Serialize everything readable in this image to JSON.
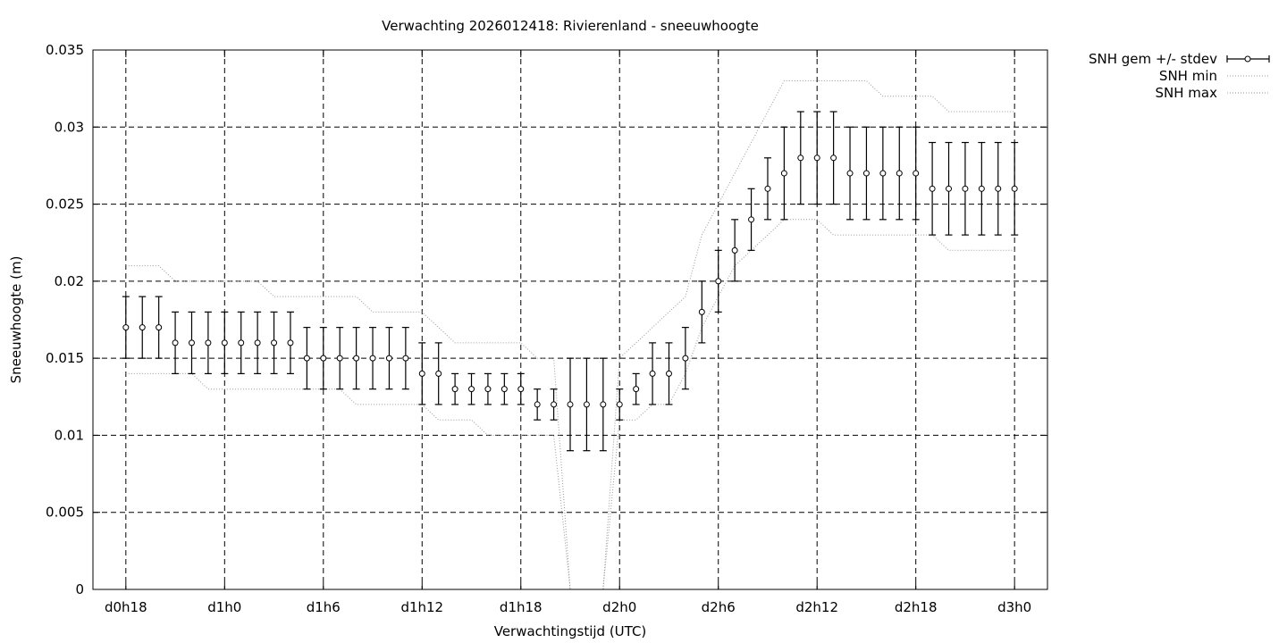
{
  "chart_data": {
    "type": "line",
    "title": "Verwachting 2026012418: Rivierenland - sneeuwhoogte",
    "xlabel": "Verwachtingstijd (UTC)",
    "ylabel": "Sneeuwhoogte (m)",
    "x_unit": "hours",
    "xlim": [
      16,
      74
    ],
    "ylim": [
      0,
      0.035
    ],
    "x_ticks": [
      {
        "x": 18,
        "label": "d0h18"
      },
      {
        "x": 24,
        "label": "d1h0"
      },
      {
        "x": 30,
        "label": "d1h6"
      },
      {
        "x": 36,
        "label": "d1h12"
      },
      {
        "x": 42,
        "label": "d1h18"
      },
      {
        "x": 48,
        "label": "d2h0"
      },
      {
        "x": 54,
        "label": "d2h6"
      },
      {
        "x": 60,
        "label": "d2h12"
      },
      {
        "x": 66,
        "label": "d2h18"
      },
      {
        "x": 72,
        "label": "d3h0"
      }
    ],
    "y_ticks": [
      {
        "y": 0,
        "label": "0"
      },
      {
        "y": 0.005,
        "label": "0.005"
      },
      {
        "y": 0.01,
        "label": "0.01"
      },
      {
        "y": 0.015,
        "label": "0.015"
      },
      {
        "y": 0.02,
        "label": "0.02"
      },
      {
        "y": 0.025,
        "label": "0.025"
      },
      {
        "y": 0.03,
        "label": "0.03"
      },
      {
        "y": 0.035,
        "label": "0.035"
      }
    ],
    "grid": true,
    "legend_position": "outside-top-right",
    "x": [
      18,
      19,
      20,
      21,
      22,
      23,
      24,
      25,
      26,
      27,
      28,
      29,
      30,
      31,
      32,
      33,
      34,
      35,
      36,
      37,
      38,
      39,
      40,
      41,
      42,
      43,
      44,
      45,
      46,
      47,
      48,
      49,
      50,
      51,
      52,
      53,
      54,
      55,
      56,
      57,
      58,
      59,
      60,
      61,
      62,
      63,
      64,
      65,
      66,
      67,
      68,
      69,
      70,
      71,
      72
    ],
    "series": [
      {
        "name": "SNH gem +/- stdev",
        "style": "errorbars",
        "color": "#000000",
        "mean": [
          0.017,
          0.017,
          0.017,
          0.016,
          0.016,
          0.016,
          0.016,
          0.016,
          0.016,
          0.016,
          0.016,
          0.015,
          0.015,
          0.015,
          0.015,
          0.015,
          0.015,
          0.015,
          0.014,
          0.014,
          0.013,
          0.013,
          0.013,
          0.013,
          0.013,
          0.012,
          0.012,
          0.012,
          0.012,
          0.012,
          0.012,
          0.013,
          0.014,
          0.014,
          0.015,
          0.018,
          0.02,
          0.022,
          0.024,
          0.026,
          0.027,
          0.028,
          0.028,
          0.028,
          0.027,
          0.027,
          0.027,
          0.027,
          0.027,
          0.026,
          0.026,
          0.026,
          0.026,
          0.026,
          0.026
        ],
        "low": [
          0.015,
          0.015,
          0.015,
          0.014,
          0.014,
          0.014,
          0.014,
          0.014,
          0.014,
          0.014,
          0.014,
          0.013,
          0.013,
          0.013,
          0.013,
          0.013,
          0.013,
          0.013,
          0.012,
          0.012,
          0.012,
          0.012,
          0.012,
          0.012,
          0.012,
          0.011,
          0.011,
          0.009,
          0.009,
          0.009,
          0.011,
          0.012,
          0.012,
          0.012,
          0.013,
          0.016,
          0.018,
          0.02,
          0.022,
          0.024,
          0.024,
          0.025,
          0.025,
          0.025,
          0.024,
          0.024,
          0.024,
          0.024,
          0.024,
          0.023,
          0.023,
          0.023,
          0.023,
          0.023,
          0.023
        ],
        "high": [
          0.019,
          0.019,
          0.019,
          0.018,
          0.018,
          0.018,
          0.018,
          0.018,
          0.018,
          0.018,
          0.018,
          0.017,
          0.017,
          0.017,
          0.017,
          0.017,
          0.017,
          0.017,
          0.016,
          0.016,
          0.014,
          0.014,
          0.014,
          0.014,
          0.014,
          0.013,
          0.013,
          0.015,
          0.015,
          0.015,
          0.013,
          0.014,
          0.016,
          0.016,
          0.017,
          0.02,
          0.022,
          0.024,
          0.026,
          0.028,
          0.03,
          0.031,
          0.031,
          0.031,
          0.03,
          0.03,
          0.03,
          0.03,
          0.03,
          0.029,
          0.029,
          0.029,
          0.029,
          0.029,
          0.029
        ]
      },
      {
        "name": "SNH min",
        "style": "dotted",
        "color": "#000000",
        "values": [
          0.014,
          0.014,
          0.014,
          0.014,
          0.014,
          0.013,
          0.013,
          0.013,
          0.013,
          0.013,
          0.013,
          0.013,
          0.013,
          0.013,
          0.012,
          0.012,
          0.012,
          0.012,
          0.012,
          0.011,
          0.011,
          0.011,
          0.01,
          0.01,
          0.01,
          0.01,
          0.01,
          0.0,
          0.0,
          0.0,
          0.011,
          0.011,
          0.012,
          0.012,
          0.014,
          0.017,
          0.019,
          0.021,
          0.022,
          0.023,
          0.024,
          0.024,
          0.024,
          0.023,
          0.023,
          0.023,
          0.023,
          0.023,
          0.023,
          0.023,
          0.022,
          0.022,
          0.022,
          0.022,
          0.022
        ]
      },
      {
        "name": "SNH max",
        "style": "dotted",
        "color": "#000000",
        "values": [
          0.021,
          0.021,
          0.021,
          0.02,
          0.02,
          0.02,
          0.02,
          0.02,
          0.02,
          0.019,
          0.019,
          0.019,
          0.019,
          0.019,
          0.019,
          0.018,
          0.018,
          0.018,
          0.018,
          0.017,
          0.016,
          0.016,
          0.016,
          0.016,
          0.016,
          0.015,
          0.015,
          0.0,
          0.0,
          0.0,
          0.015,
          0.016,
          0.017,
          0.018,
          0.019,
          0.023,
          0.025,
          0.027,
          0.029,
          0.031,
          0.033,
          0.033,
          0.033,
          0.033,
          0.033,
          0.033,
          0.032,
          0.032,
          0.032,
          0.032,
          0.031,
          0.031,
          0.031,
          0.031,
          0.031
        ]
      }
    ]
  }
}
